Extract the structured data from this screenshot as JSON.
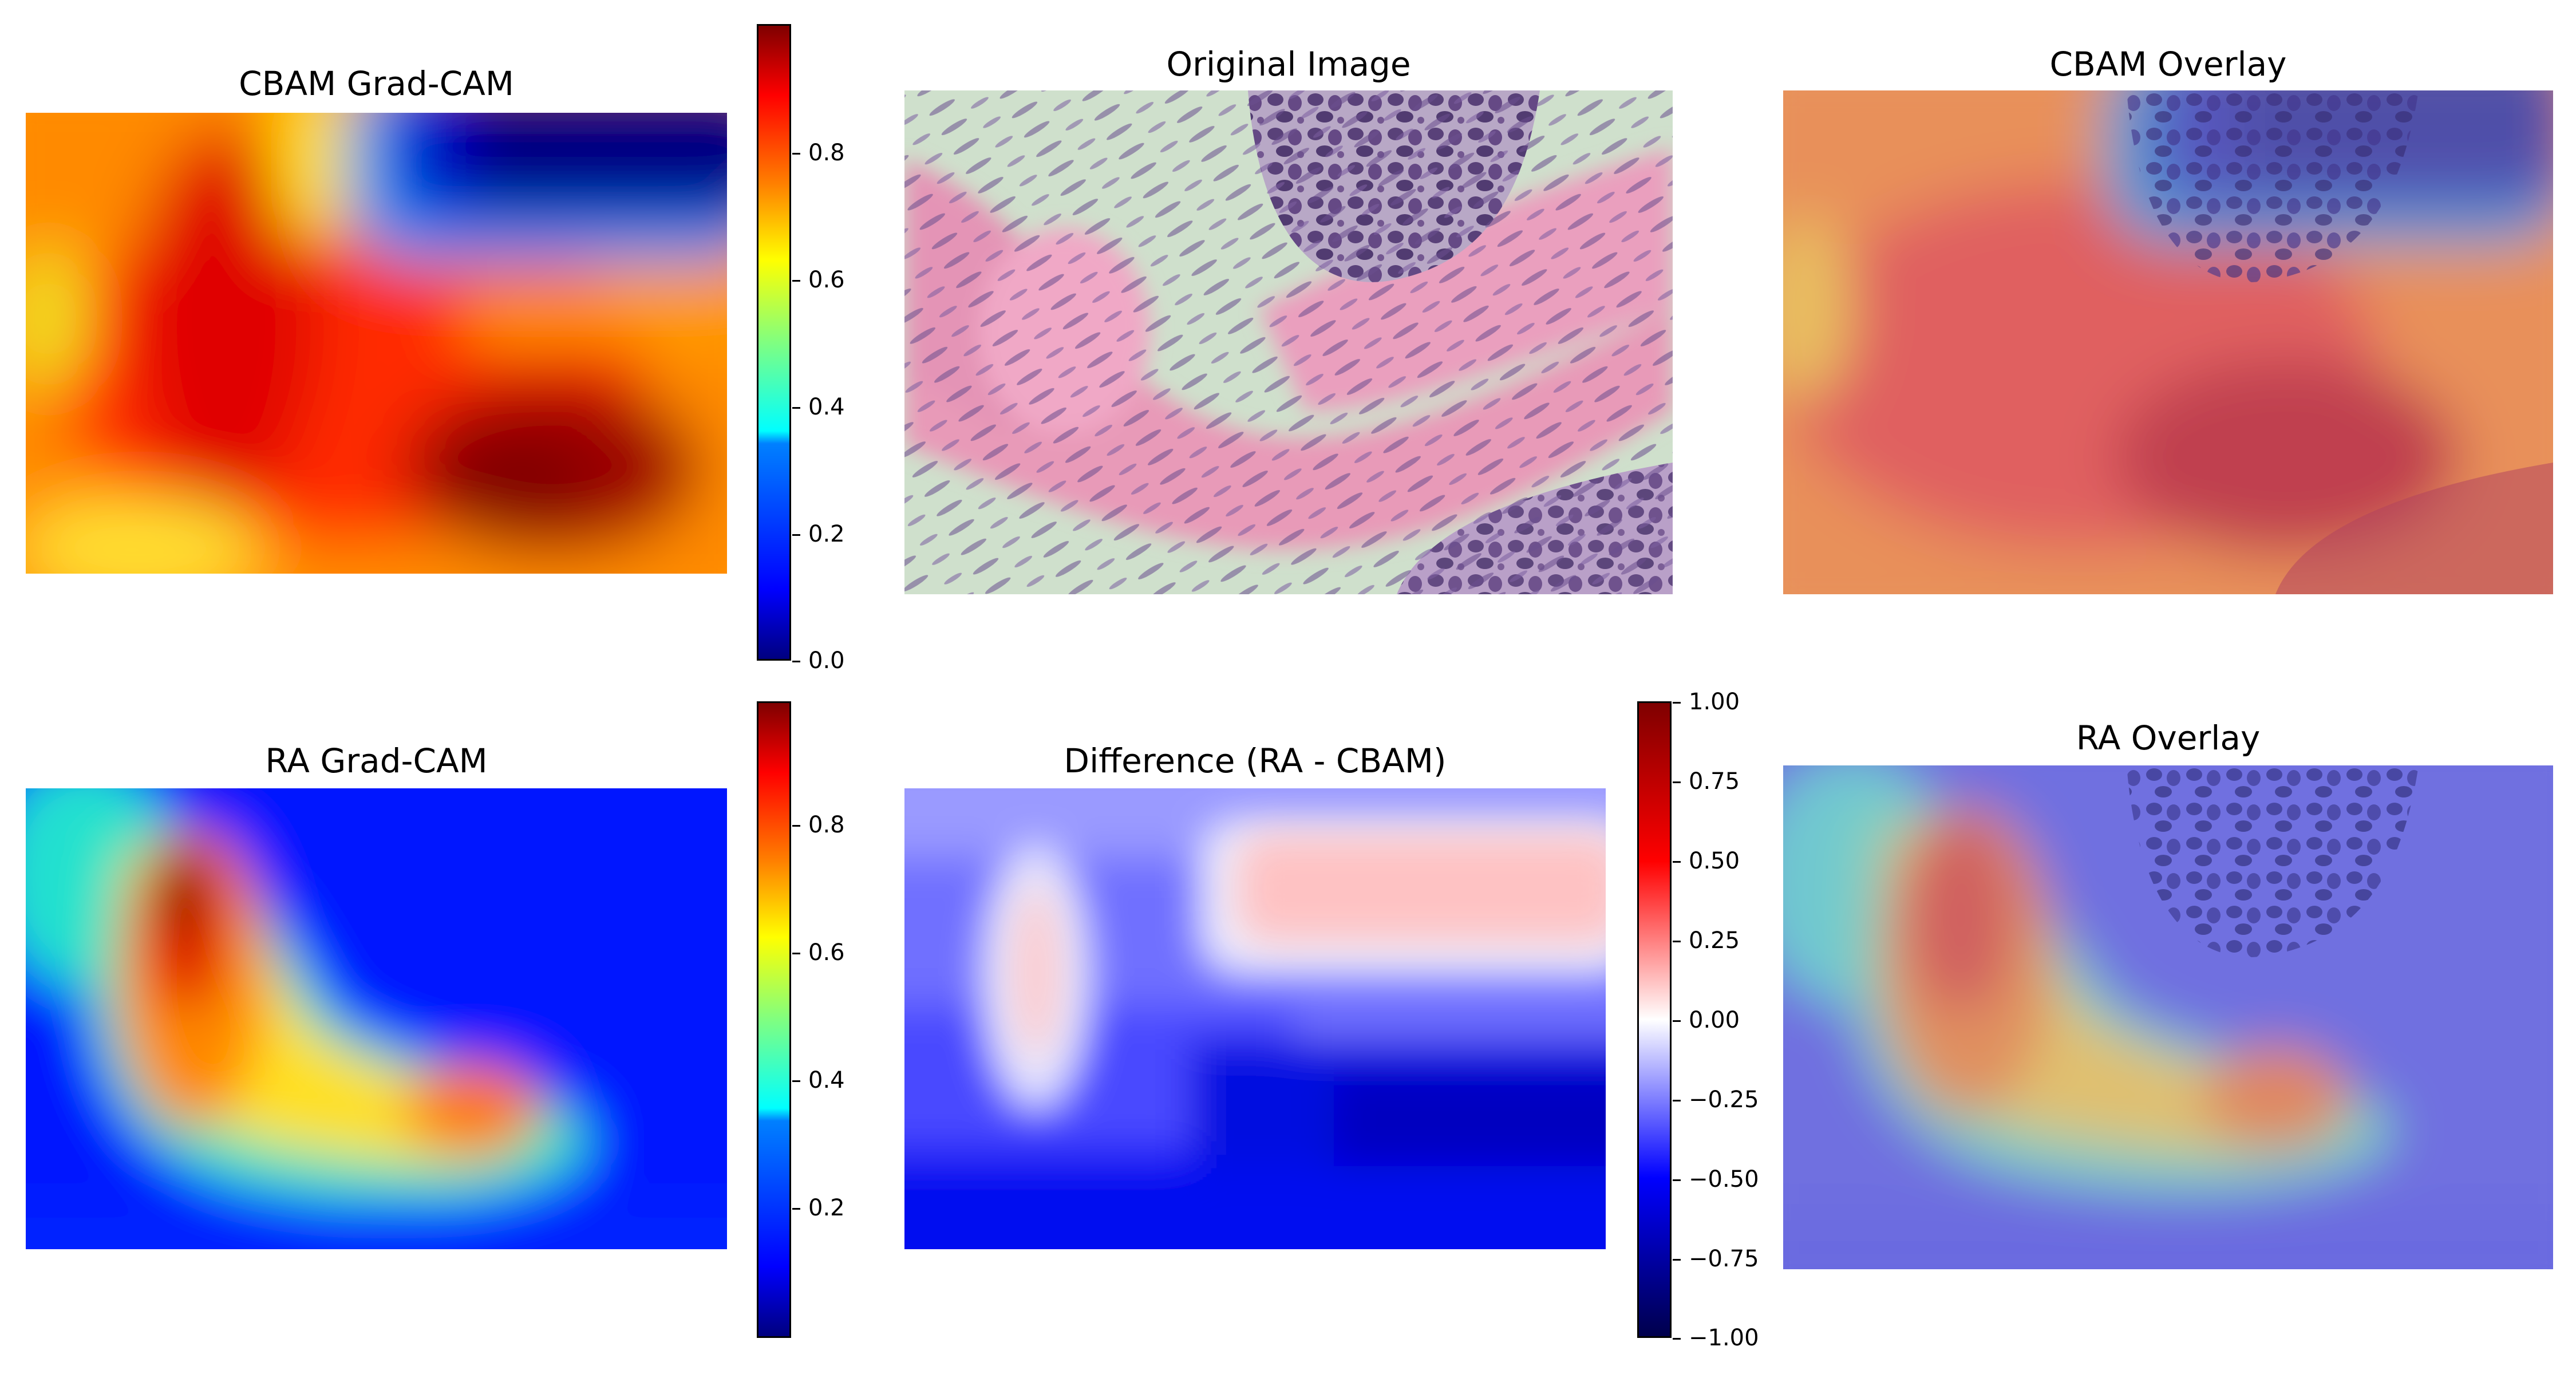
{
  "panels": {
    "cbam_gradcam": {
      "title": "CBAM Grad-CAM"
    },
    "original": {
      "title": "Original Image"
    },
    "cbam_overlay": {
      "title": "CBAM Overlay"
    },
    "ra_gradcam": {
      "title": "RA Grad-CAM"
    },
    "difference": {
      "title": "Difference (RA - CBAM)"
    },
    "ra_overlay": {
      "title": "RA Overlay"
    }
  },
  "colorbars": {
    "cbam": {
      "colormap": "jet",
      "range": [
        0.0,
        1.0
      ],
      "ticks": [
        "0.0",
        "0.2",
        "0.4",
        "0.6",
        "0.8"
      ]
    },
    "ra": {
      "colormap": "jet",
      "range": [
        0.0,
        1.0
      ],
      "ticks": [
        "0.2",
        "0.4",
        "0.6",
        "0.8"
      ]
    },
    "difference": {
      "colormap": "seismic",
      "range": [
        -1.0,
        1.0
      ],
      "ticks": [
        "1.00",
        "0.75",
        "0.50",
        "0.25",
        "0.00",
        "−0.25",
        "−0.50",
        "−0.75",
        "−1.00"
      ]
    }
  },
  "colors": {
    "jet_low": "#00007f",
    "jet_high": "#7f0000",
    "tissue_pink": "#e8a4c4",
    "nuclei_purple": "#5a3f78"
  }
}
